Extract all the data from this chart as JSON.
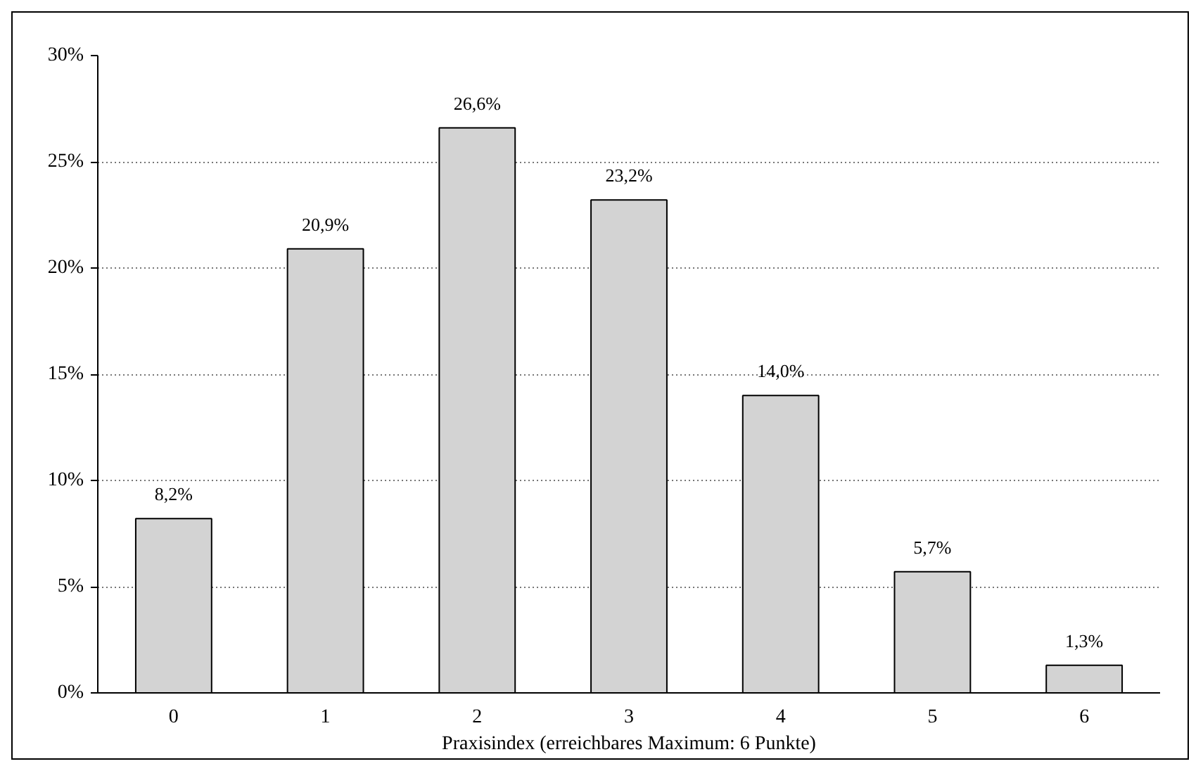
{
  "chart_data": {
    "type": "bar",
    "xlabel": "Praxisindex (erreichbares Maximum: 6 Punkte)",
    "categories": [
      "0",
      "1",
      "2",
      "3",
      "4",
      "5",
      "6"
    ],
    "values": [
      8.2,
      20.9,
      26.6,
      23.2,
      14.0,
      5.7,
      1.3
    ],
    "value_labels": [
      "8,2%",
      "20,9%",
      "26,6%",
      "23,2%",
      "14,0%",
      "5,7%",
      "1,3%"
    ],
    "color": "#d3d3d3",
    "ylim": [
      0,
      30
    ],
    "yticks": [
      {
        "value": 0,
        "label": "0%"
      },
      {
        "value": 5,
        "label": "5%"
      },
      {
        "value": 10,
        "label": "10%"
      },
      {
        "value": 15,
        "label": "15%"
      },
      {
        "value": 20,
        "label": "20%"
      },
      {
        "value": 25,
        "label": "25%"
      },
      {
        "value": 30,
        "label": "30%"
      }
    ],
    "grid": "y"
  }
}
